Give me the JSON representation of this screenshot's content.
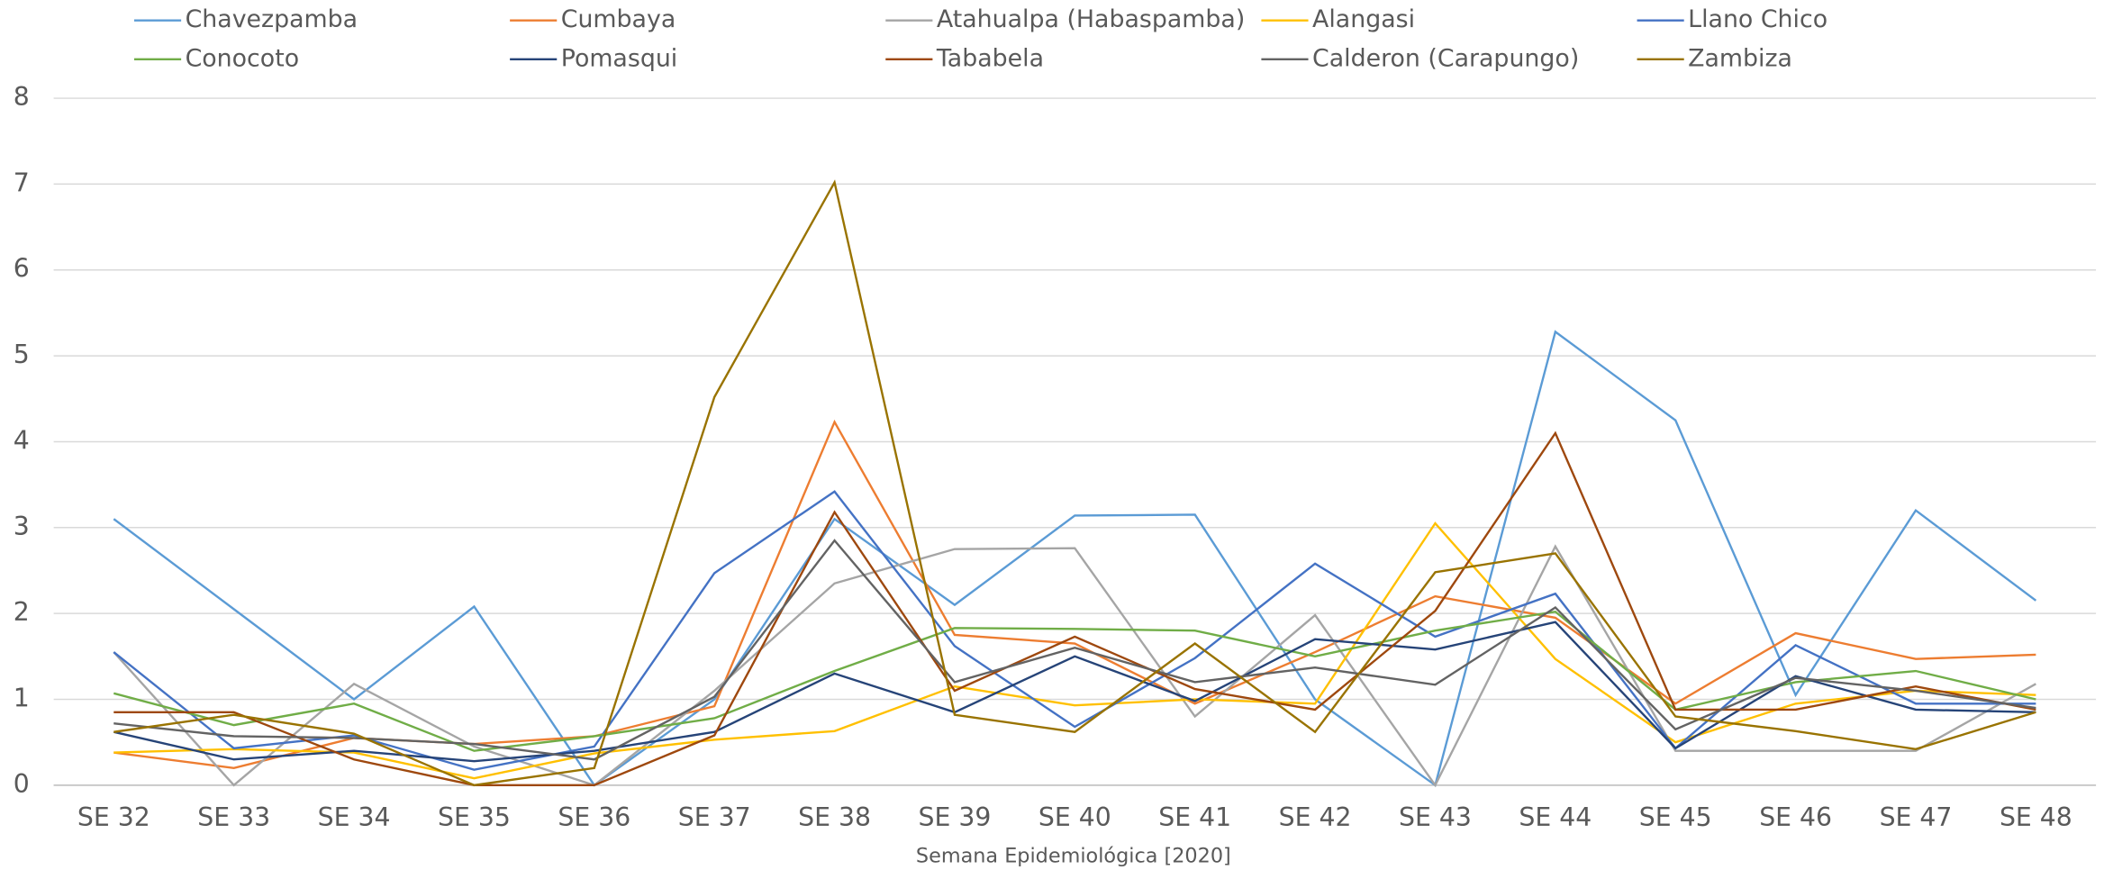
{
  "chart_data": {
    "type": "line",
    "x_label": "Semana Epidemiológica [2020]",
    "categories": [
      "SE 32",
      "SE 33",
      "SE 34",
      "SE 35",
      "SE 36",
      "SE 37",
      "SE 38",
      "SE 39",
      "SE 40",
      "SE 41",
      "SE 42",
      "SE 43",
      "SE 44",
      "SE 45",
      "SE 46",
      "SE 47",
      "SE 48"
    ],
    "ylim": [
      0,
      8
    ],
    "yticks": [
      0,
      1,
      2,
      3,
      4,
      5,
      6,
      7,
      8
    ],
    "grid": true,
    "legend": "top",
    "series": [
      {
        "name": "Chavezpamba",
        "color": "#5b9bd5",
        "values": [
          3.1,
          2.05,
          1.0,
          2.08,
          0.0,
          1.0,
          3.1,
          2.1,
          3.14,
          3.15,
          1.0,
          0.0,
          5.28,
          4.25,
          1.05,
          3.2,
          2.15
        ]
      },
      {
        "name": "Cumbaya",
        "color": "#ed7d31",
        "values": [
          0.38,
          0.2,
          0.55,
          0.48,
          0.57,
          0.92,
          4.23,
          1.75,
          1.65,
          0.95,
          1.55,
          2.2,
          1.95,
          0.95,
          1.77,
          1.47,
          1.52
        ]
      },
      {
        "name": "Atahualpa (Habaspamba)",
        "color": "#a5a5a5",
        "values": [
          1.55,
          0.0,
          1.18,
          0.45,
          0.0,
          1.1,
          2.35,
          2.75,
          2.76,
          0.8,
          1.98,
          0.0,
          2.78,
          0.4,
          0.4,
          0.4,
          1.18
        ]
      },
      {
        "name": "Alangasi",
        "color": "#ffc000",
        "values": [
          0.38,
          0.42,
          0.38,
          0.08,
          0.37,
          0.53,
          0.63,
          1.15,
          0.93,
          1.0,
          0.95,
          3.05,
          1.47,
          0.5,
          0.95,
          1.1,
          1.05
        ]
      },
      {
        "name": "Llano Chico",
        "color": "#4472c4",
        "values": [
          1.55,
          0.43,
          0.58,
          0.18,
          0.45,
          2.47,
          3.42,
          1.62,
          0.68,
          1.48,
          2.58,
          1.73,
          2.23,
          0.43,
          1.63,
          0.95,
          0.95
        ]
      },
      {
        "name": "Conocoto",
        "color": "#70ad47",
        "values": [
          1.07,
          0.7,
          0.95,
          0.4,
          0.57,
          0.78,
          1.33,
          1.83,
          1.82,
          1.8,
          1.5,
          1.8,
          2.02,
          0.88,
          1.2,
          1.33,
          1.0
        ]
      },
      {
        "name": "Pomasqui",
        "color": "#264478",
        "values": [
          0.62,
          0.3,
          0.4,
          0.28,
          0.4,
          0.62,
          1.3,
          0.85,
          1.5,
          0.98,
          1.7,
          1.58,
          1.9,
          0.43,
          1.27,
          0.88,
          0.85
        ]
      },
      {
        "name": "Tababela",
        "color": "#9e480e",
        "values": [
          0.85,
          0.85,
          0.3,
          0.0,
          0.0,
          0.58,
          3.18,
          1.1,
          1.73,
          1.12,
          0.88,
          2.03,
          4.1,
          0.88,
          0.88,
          1.15,
          0.88
        ]
      },
      {
        "name": "Calderon (Carapungo)",
        "color": "#636363",
        "values": [
          0.72,
          0.57,
          0.55,
          0.48,
          0.3,
          1.03,
          2.85,
          1.2,
          1.6,
          1.2,
          1.37,
          1.17,
          2.07,
          0.65,
          1.25,
          1.1,
          0.9
        ]
      },
      {
        "name": "Zambiza",
        "color": "#997300",
        "values": [
          0.62,
          0.82,
          0.6,
          0.0,
          0.2,
          4.52,
          7.02,
          0.82,
          0.62,
          1.65,
          0.62,
          2.48,
          2.7,
          0.8,
          0.63,
          0.42,
          0.85
        ]
      }
    ]
  }
}
